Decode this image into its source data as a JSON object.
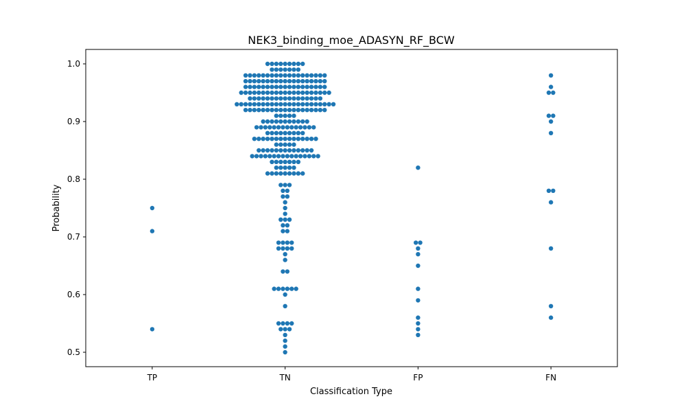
{
  "chart_data": {
    "type": "scatter",
    "subtype": "swarm",
    "title": "NEK3_binding_moe_ADASYN_RF_BCW",
    "xlabel": "Classification Type",
    "ylabel": "Probability",
    "categories": [
      "TP",
      "TN",
      "FP",
      "FN"
    ],
    "ylim": [
      0.475,
      1.025
    ],
    "yticks": [
      "0.5",
      "0.6",
      "0.7",
      "0.8",
      "0.9",
      "1.0"
    ],
    "grid": false,
    "point_color": "#1f77b4",
    "groups": [
      {
        "category": "TP",
        "values": [
          0.75,
          0.71,
          0.54
        ]
      },
      {
        "category": "TN",
        "values": [
          1.0,
          1.0,
          1.0,
          1.0,
          1.0,
          1.0,
          1.0,
          1.0,
          1.0,
          0.99,
          0.99,
          0.99,
          0.99,
          0.99,
          0.99,
          0.99,
          0.98,
          0.98,
          0.98,
          0.98,
          0.98,
          0.98,
          0.98,
          0.98,
          0.98,
          0.98,
          0.98,
          0.98,
          0.98,
          0.98,
          0.98,
          0.98,
          0.98,
          0.98,
          0.98,
          0.97,
          0.97,
          0.97,
          0.97,
          0.97,
          0.97,
          0.97,
          0.97,
          0.97,
          0.97,
          0.97,
          0.97,
          0.97,
          0.97,
          0.97,
          0.97,
          0.97,
          0.97,
          0.97,
          0.96,
          0.96,
          0.96,
          0.96,
          0.96,
          0.96,
          0.96,
          0.96,
          0.96,
          0.96,
          0.96,
          0.96,
          0.96,
          0.96,
          0.96,
          0.96,
          0.96,
          0.96,
          0.96,
          0.95,
          0.95,
          0.95,
          0.95,
          0.95,
          0.95,
          0.95,
          0.95,
          0.95,
          0.95,
          0.95,
          0.95,
          0.95,
          0.95,
          0.95,
          0.95,
          0.95,
          0.95,
          0.95,
          0.95,
          0.95,
          0.94,
          0.94,
          0.94,
          0.94,
          0.94,
          0.94,
          0.94,
          0.94,
          0.94,
          0.94,
          0.94,
          0.94,
          0.94,
          0.94,
          0.94,
          0.94,
          0.94,
          0.93,
          0.93,
          0.93,
          0.93,
          0.93,
          0.93,
          0.93,
          0.93,
          0.93,
          0.93,
          0.93,
          0.93,
          0.93,
          0.93,
          0.93,
          0.93,
          0.93,
          0.93,
          0.93,
          0.93,
          0.93,
          0.93,
          0.93,
          0.92,
          0.92,
          0.92,
          0.92,
          0.92,
          0.92,
          0.92,
          0.92,
          0.92,
          0.92,
          0.92,
          0.92,
          0.92,
          0.92,
          0.92,
          0.92,
          0.92,
          0.92,
          0.92,
          0.91,
          0.91,
          0.91,
          0.91,
          0.91,
          0.9,
          0.9,
          0.9,
          0.9,
          0.9,
          0.9,
          0.9,
          0.9,
          0.9,
          0.9,
          0.9,
          0.89,
          0.89,
          0.89,
          0.89,
          0.89,
          0.89,
          0.89,
          0.89,
          0.89,
          0.89,
          0.89,
          0.89,
          0.89,
          0.89,
          0.88,
          0.88,
          0.88,
          0.88,
          0.88,
          0.88,
          0.88,
          0.88,
          0.88,
          0.87,
          0.87,
          0.87,
          0.87,
          0.87,
          0.87,
          0.87,
          0.87,
          0.87,
          0.87,
          0.87,
          0.87,
          0.87,
          0.87,
          0.87,
          0.86,
          0.86,
          0.86,
          0.86,
          0.86,
          0.85,
          0.85,
          0.85,
          0.85,
          0.85,
          0.85,
          0.85,
          0.85,
          0.85,
          0.85,
          0.85,
          0.85,
          0.85,
          0.84,
          0.84,
          0.84,
          0.84,
          0.84,
          0.84,
          0.84,
          0.84,
          0.84,
          0.84,
          0.84,
          0.84,
          0.84,
          0.84,
          0.84,
          0.84,
          0.83,
          0.83,
          0.83,
          0.83,
          0.83,
          0.83,
          0.83,
          0.82,
          0.82,
          0.82,
          0.82,
          0.82,
          0.81,
          0.81,
          0.81,
          0.81,
          0.81,
          0.81,
          0.81,
          0.81,
          0.81,
          0.79,
          0.79,
          0.79,
          0.78,
          0.78,
          0.77,
          0.77,
          0.76,
          0.75,
          0.74,
          0.73,
          0.73,
          0.73,
          0.72,
          0.72,
          0.71,
          0.71,
          0.69,
          0.69,
          0.69,
          0.69,
          0.68,
          0.68,
          0.68,
          0.68,
          0.67,
          0.66,
          0.64,
          0.64,
          0.61,
          0.61,
          0.61,
          0.61,
          0.61,
          0.61,
          0.6,
          0.58,
          0.55,
          0.55,
          0.55,
          0.55,
          0.54,
          0.54,
          0.54,
          0.53,
          0.52,
          0.51,
          0.5
        ]
      },
      {
        "category": "FP",
        "values": [
          0.82,
          0.69,
          0.69,
          0.68,
          0.67,
          0.65,
          0.61,
          0.59,
          0.56,
          0.55,
          0.54,
          0.53
        ]
      },
      {
        "category": "FN",
        "values": [
          0.98,
          0.96,
          0.95,
          0.95,
          0.91,
          0.91,
          0.9,
          0.88,
          0.78,
          0.78,
          0.76,
          0.68,
          0.58,
          0.56
        ]
      }
    ]
  }
}
